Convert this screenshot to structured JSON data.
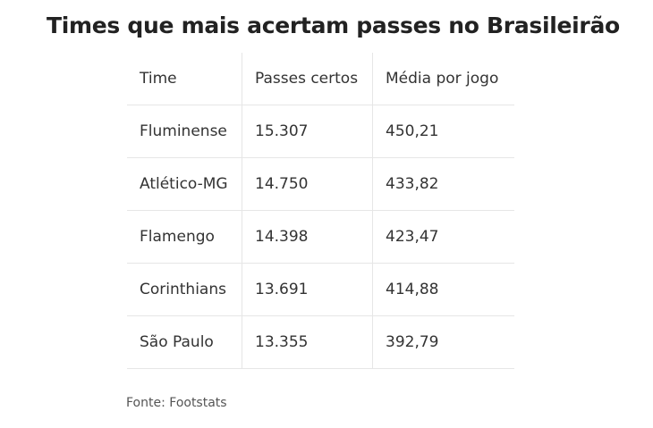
{
  "title": "Times que mais acertam passes no Brasileirão",
  "table": {
    "header": [
      "Time",
      "Passes certos",
      "Média por jogo"
    ],
    "rows": [
      [
        "Fluminense",
        "15.307",
        "450,21"
      ],
      [
        "Atlético-MG",
        "14.750",
        "433,82"
      ],
      [
        "Flamengo",
        "14.398",
        "423,47"
      ],
      [
        "Corinthians",
        "13.691",
        "414,88"
      ],
      [
        "São Paulo",
        "13.355",
        "392,79"
      ]
    ]
  },
  "source": "Fonte: Footstats"
}
